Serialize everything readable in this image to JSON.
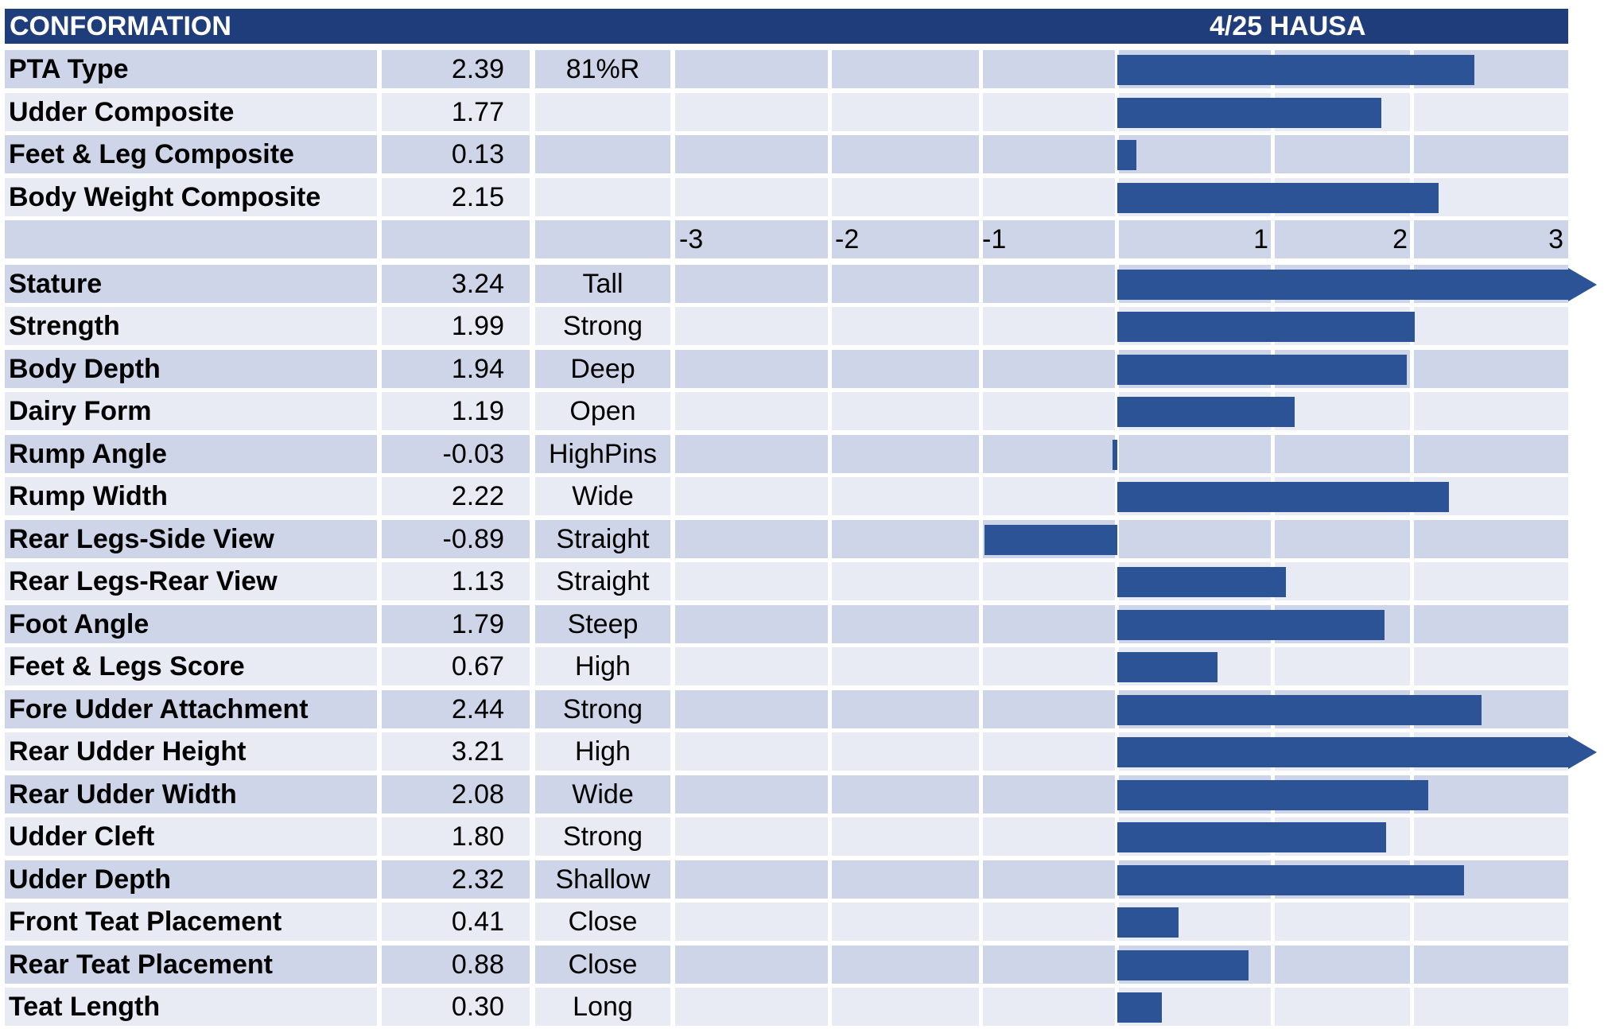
{
  "header": {
    "title": "CONFORMATION",
    "date_label": "4/25 HAUSA"
  },
  "colors": {
    "header_bg": "#1f3d7a",
    "bar": "#2b5395",
    "row_shade": "#cfd5e8",
    "row_plain": "#e8ebf4"
  },
  "chart_data": {
    "type": "bar",
    "orientation": "horizontal",
    "xlim": [
      -3,
      3
    ],
    "x_ticks": [
      "-3",
      "-2",
      "-1",
      "1",
      "2",
      "3"
    ],
    "grid": true,
    "groups": [
      {
        "rows": [
          {
            "name": "PTA Type",
            "value": 2.39,
            "value_label": "2.39",
            "desc": "81%R"
          },
          {
            "name": "Udder Composite",
            "value": 1.77,
            "value_label": "1.77",
            "desc": ""
          },
          {
            "name": "Feet & Leg Composite",
            "value": 0.13,
            "value_label": "0.13",
            "desc": ""
          },
          {
            "name": "Body Weight Composite",
            "value": 2.15,
            "value_label": "2.15",
            "desc": ""
          }
        ]
      },
      {
        "rows": [
          {
            "name": "Stature",
            "value": 3.24,
            "value_label": "3.24",
            "desc": "Tall"
          },
          {
            "name": "Strength",
            "value": 1.99,
            "value_label": "1.99",
            "desc": "Strong"
          },
          {
            "name": "Body Depth",
            "value": 1.94,
            "value_label": "1.94",
            "desc": "Deep"
          },
          {
            "name": "Dairy Form",
            "value": 1.19,
            "value_label": "1.19",
            "desc": "Open"
          },
          {
            "name": "Rump Angle",
            "value": -0.03,
            "value_label": "-0.03",
            "desc": "HighPins"
          },
          {
            "name": "Rump Width",
            "value": 2.22,
            "value_label": "2.22",
            "desc": "Wide"
          },
          {
            "name": "Rear Legs-Side View",
            "value": -0.89,
            "value_label": "-0.89",
            "desc": "Straight"
          },
          {
            "name": "Rear Legs-Rear View",
            "value": 1.13,
            "value_label": "1.13",
            "desc": "Straight"
          },
          {
            "name": "Foot Angle",
            "value": 1.79,
            "value_label": "1.79",
            "desc": "Steep"
          },
          {
            "name": "Feet & Legs Score",
            "value": 0.67,
            "value_label": "0.67",
            "desc": "High"
          },
          {
            "name": "Fore Udder Attachment",
            "value": 2.44,
            "value_label": "2.44",
            "desc": "Strong"
          },
          {
            "name": "Rear Udder Height",
            "value": 3.21,
            "value_label": "3.21",
            "desc": "High"
          },
          {
            "name": "Rear Udder Width",
            "value": 2.08,
            "value_label": "2.08",
            "desc": "Wide"
          },
          {
            "name": "Udder Cleft",
            "value": 1.8,
            "value_label": "1.80",
            "desc": "Strong"
          },
          {
            "name": "Udder Depth",
            "value": 2.32,
            "value_label": "2.32",
            "desc": "Shallow"
          },
          {
            "name": "Front Teat Placement",
            "value": 0.41,
            "value_label": "0.41",
            "desc": "Close"
          },
          {
            "name": "Rear Teat Placement",
            "value": 0.88,
            "value_label": "0.88",
            "desc": "Close"
          },
          {
            "name": "Teat Length",
            "value": 0.3,
            "value_label": "0.30",
            "desc": "Long"
          }
        ]
      }
    ]
  }
}
